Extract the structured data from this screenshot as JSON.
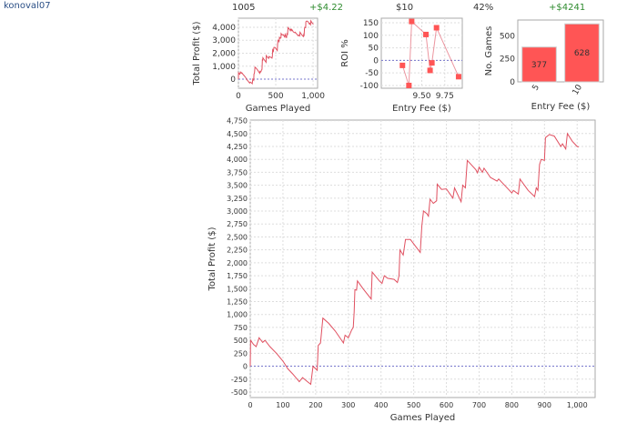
{
  "user": {
    "name": "konoval07"
  },
  "summary": {
    "games": "1005",
    "avg_profit": "+$4.22",
    "avg_fee": "$10",
    "roi": "42%",
    "total_profit": "+$4241"
  },
  "colors": {
    "series": "#e05060",
    "bar": "#ff5555",
    "zero_line": "#7777cc",
    "grid": "#dddddd",
    "positive": "#2e8b2e"
  },
  "chart_data": [
    {
      "id": "profit-small",
      "type": "line",
      "xlabel": "Games Played",
      "ylabel": "Total Profit ($)",
      "xlim": [
        0,
        1060
      ],
      "ylim": [
        -700,
        4700
      ],
      "xticks": [
        0,
        500,
        1000
      ],
      "xtick_labels": [
        "0",
        "500",
        "1,000"
      ],
      "yticks": [
        0,
        1000,
        2000,
        3000,
        4000
      ],
      "ytick_labels": [
        "0",
        "1,000",
        "2,000",
        "3,000",
        "4,000"
      ],
      "grid": true,
      "zero_line": true,
      "series_ref": "profit"
    },
    {
      "id": "roi",
      "type": "line",
      "xlabel": "Entry Fee ($)",
      "ylabel": "ROI %",
      "xlim": [
        9.06,
        9.94
      ],
      "ylim": [
        -111,
        168
      ],
      "xticks": [
        9.5,
        9.75
      ],
      "xtick_labels": [
        "9.50",
        "9.75"
      ],
      "yticks": [
        150,
        100,
        50,
        0,
        -50,
        -100
      ],
      "ytick_labels": [
        "150",
        "100",
        "50",
        "0",
        "-50",
        "-100"
      ],
      "grid": true,
      "zero_line": true,
      "x": [
        9.29,
        9.36,
        9.39,
        9.545,
        9.59,
        9.61,
        9.66,
        9.9
      ],
      "y": [
        -20,
        -100,
        155,
        103,
        -40,
        -10,
        130,
        -65
      ]
    },
    {
      "id": "games-by-fee",
      "type": "bar",
      "xlabel": "Entry Fee ($)",
      "ylabel": "No. Games",
      "ylim": [
        0,
        670
      ],
      "yticks": [
        0,
        250,
        500
      ],
      "ytick_labels": [
        "0",
        "250",
        "500"
      ],
      "categories": [
        "5",
        "10"
      ],
      "values": [
        377,
        628
      ],
      "value_labels": [
        "377",
        "628"
      ]
    },
    {
      "id": "profit-main",
      "type": "line",
      "xlabel": "Games Played",
      "ylabel": "Total Profit ($)",
      "xlim": [
        0,
        1055
      ],
      "ylim": [
        -606,
        4760
      ],
      "xticks": [
        0,
        100,
        200,
        300,
        400,
        500,
        600,
        700,
        800,
        900,
        1000
      ],
      "xtick_labels": [
        "0",
        "100",
        "200",
        "300",
        "400",
        "500",
        "600",
        "700",
        "800",
        "900",
        "1,000"
      ],
      "yticks": [
        -500,
        -250,
        0,
        250,
        500,
        750,
        1000,
        1250,
        1500,
        1750,
        2000,
        2250,
        2500,
        2750,
        3000,
        3250,
        3500,
        3750,
        4000,
        4250,
        4500,
        4750
      ],
      "ytick_labels": [
        "-500",
        "-250",
        "0",
        "250",
        "500",
        "750",
        "1,000",
        "1,250",
        "1,500",
        "1,750",
        "2,000",
        "2,250",
        "2,500",
        "2,750",
        "3,000",
        "3,250",
        "3,500",
        "3,750",
        "4,000",
        "4,250",
        "4,500",
        "4,750"
      ],
      "grid": true,
      "zero_line": true,
      "series_ref": "profit"
    }
  ],
  "profit": {
    "x": [
      0,
      1,
      10,
      18,
      27,
      38,
      45,
      60,
      80,
      100,
      115,
      130,
      150,
      160,
      175,
      185,
      192,
      205,
      208,
      215,
      222,
      240,
      260,
      285,
      290,
      300,
      310,
      315,
      318,
      320,
      325,
      328,
      345,
      370,
      373,
      395,
      403,
      410,
      420,
      440,
      450,
      455,
      458,
      468,
      475,
      490,
      520,
      525,
      530,
      540,
      545,
      550,
      560,
      570,
      572,
      585,
      600,
      620,
      625,
      645,
      650,
      658,
      664,
      690,
      695,
      700,
      710,
      715,
      735,
      755,
      760,
      790,
      800,
      805,
      820,
      825,
      850,
      870,
      875,
      880,
      885,
      890,
      900,
      903,
      915,
      930,
      950,
      955,
      965,
      970,
      985,
      1000,
      1005
    ],
    "y": [
      0,
      500,
      420,
      380,
      550,
      460,
      500,
      380,
      250,
      100,
      -50,
      -150,
      -300,
      -220,
      -300,
      -350,
      0,
      -80,
      400,
      450,
      930,
      830,
      680,
      450,
      600,
      550,
      700,
      750,
      1050,
      1480,
      1470,
      1650,
      1500,
      1300,
      1820,
      1650,
      1600,
      1750,
      1700,
      1680,
      1620,
      1750,
      2250,
      2150,
      2450,
      2450,
      2200,
      2720,
      3000,
      2950,
      2900,
      3230,
      3150,
      3200,
      3520,
      3420,
      3430,
      3250,
      3450,
      3180,
      3500,
      3450,
      3980,
      3800,
      3740,
      3850,
      3750,
      3830,
      3650,
      3580,
      3620,
      3420,
      3350,
      3400,
      3330,
      3620,
      3400,
      3280,
      3450,
      3400,
      3900,
      4000,
      3980,
      4420,
      4480,
      4450,
      4250,
      4300,
      4200,
      4500,
      4350,
      4250,
      4241
    ]
  }
}
